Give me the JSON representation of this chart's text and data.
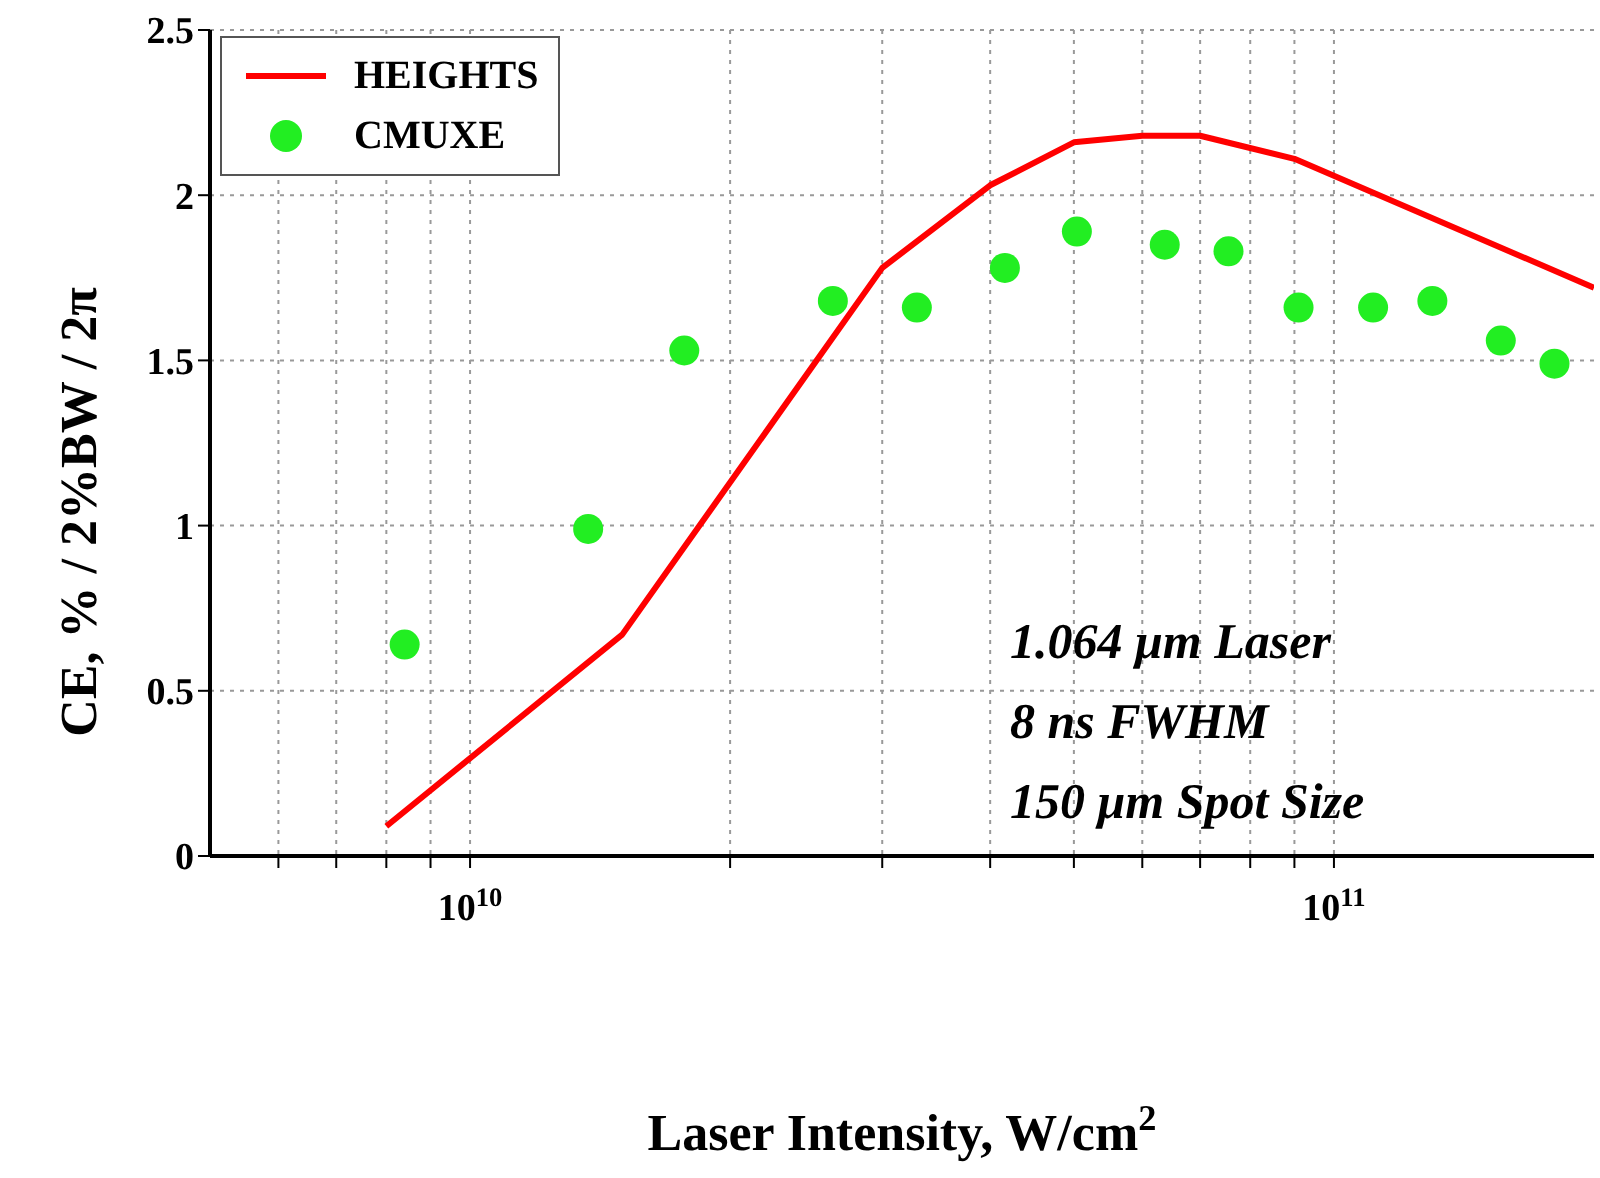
{
  "chart_data": {
    "type": "line",
    "xlabel": "Laser Intensity, W/cm$^{2}$",
    "ylabel": "CE, % / 2%BW / 2π",
    "log": "x",
    "grid": true,
    "legend": "top left",
    "xlim": [
      5000000000.0,
      200000000000.0
    ],
    "xticks": [
      {
        "value": 6000000000.0,
        "label": null
      },
      {
        "value": 7000000000.0,
        "label": null
      },
      {
        "value": 8000000000.0,
        "label": null
      },
      {
        "value": 9000000000.0,
        "label": null
      },
      {
        "value": 10000000000.0,
        "label": "10$^{10}$"
      },
      {
        "value": 20000000000.0,
        "label": null
      },
      {
        "value": 30000000000.0,
        "label": null
      },
      {
        "value": 40000000000.0,
        "label": null
      },
      {
        "value": 50000000000.0,
        "label": null
      },
      {
        "value": 60000000000.0,
        "label": null
      },
      {
        "value": 70000000000.0,
        "label": null
      },
      {
        "value": 80000000000.0,
        "label": null
      },
      {
        "value": 90000000000.0,
        "label": null
      },
      {
        "value": 100000000000.0,
        "label": "10$^{11}$"
      }
    ],
    "ylim": [
      0,
      2.5
    ],
    "yticks": [
      0,
      0.5,
      1,
      1.5,
      2,
      2.5
    ],
    "series": [
      {
        "name": "HEIGHTS",
        "color": "#ff0000",
        "marker": "none",
        "x": [
          8000000000.0,
          15000000000.0,
          30000000000.0,
          40000000000.0,
          50000000000.0,
          60000000000.0,
          70000000000.0,
          90000000000.0,
          200000000000.0
        ],
        "values": [
          0.09,
          0.67,
          1.78,
          2.03,
          2.16,
          2.18,
          2.18,
          2.11,
          1.72
        ]
      },
      {
        "name": "CMUXE",
        "type": "scatter",
        "color": "#22ee22",
        "marker": "circle",
        "x": [
          8400000000.0,
          13700000000.0,
          17700000000.0,
          26300000000.0,
          32900000000.0,
          41600000000.0,
          50400000000.0,
          63700000000.0,
          75500000000.0,
          91000000000.0,
          111000000000.0,
          130000000000.0,
          156000000000.0,
          180000000000.0
        ],
        "values": [
          0.64,
          0.99,
          1.53,
          1.68,
          1.66,
          1.78,
          1.89,
          1.85,
          1.83,
          1.66,
          1.66,
          1.68,
          1.56,
          1.49
        ]
      }
    ],
    "annotations": [
      "1.064 μm Laser",
      "8 ns FWHM",
      "150 μm Spot Size"
    ]
  }
}
